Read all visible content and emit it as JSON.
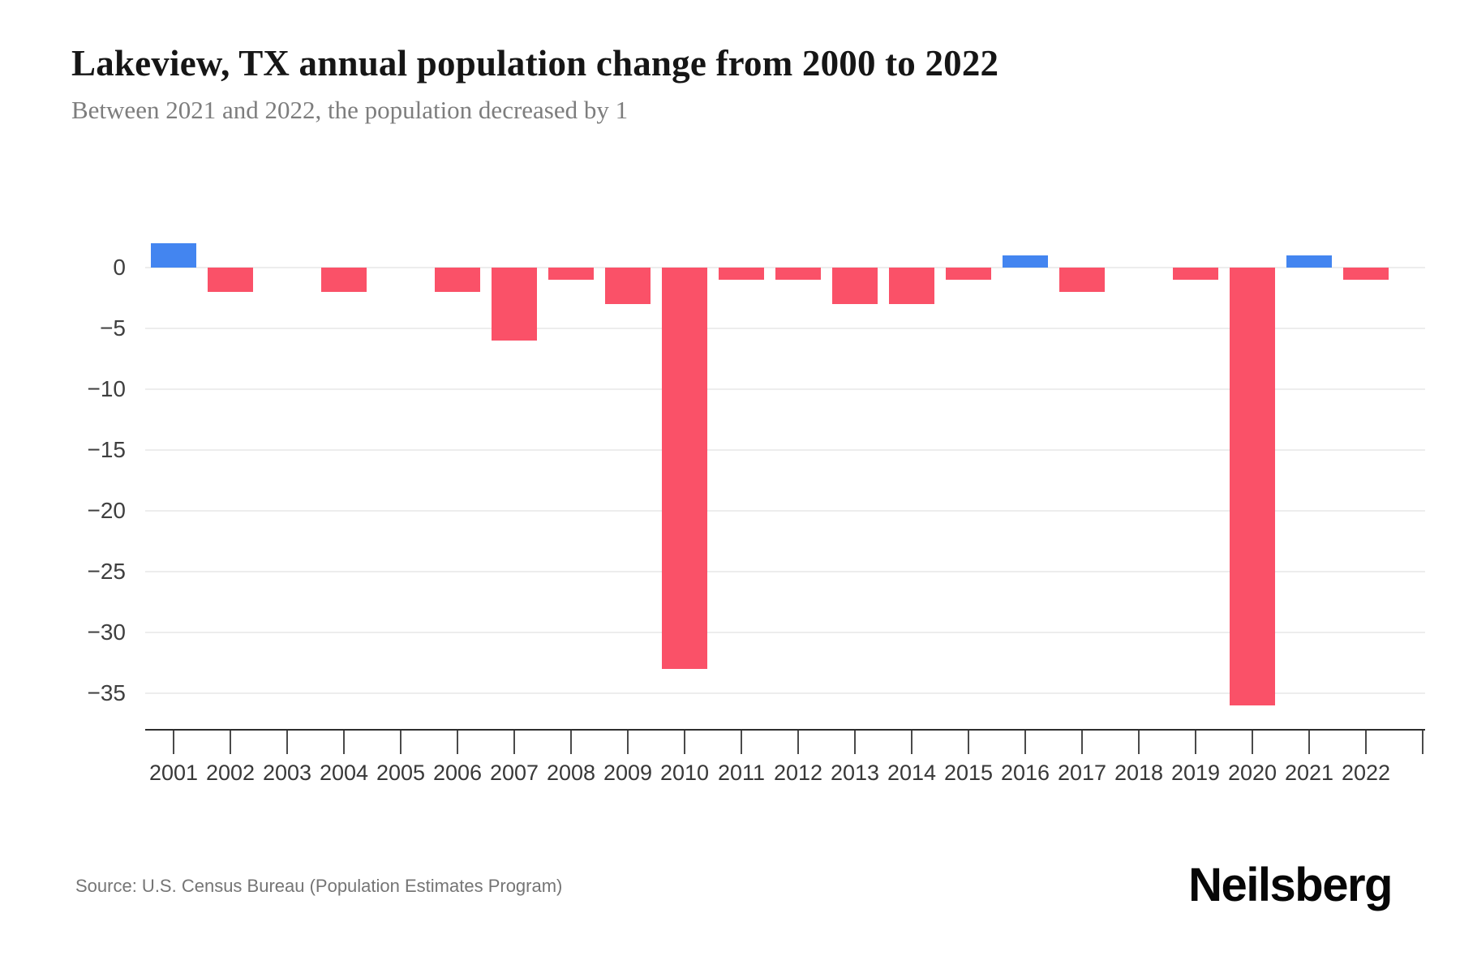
{
  "header": {
    "title": "Lakeview, TX annual population change from 2000 to 2022",
    "subtitle": "Between 2021 and 2022, the population decreased by 1"
  },
  "footer": {
    "source": "Source: U.S. Census Bureau (Population Estimates Program)",
    "brand": "Neilsberg"
  },
  "chart_data": {
    "type": "bar",
    "title": "Lakeview, TX annual population change from 2000 to 2022",
    "subtitle": "Between 2021 and 2022, the population decreased by 1",
    "xlabel": "",
    "ylabel": "",
    "categories": [
      "2001",
      "2002",
      "2003",
      "2004",
      "2005",
      "2006",
      "2007",
      "2008",
      "2009",
      "2010",
      "2011",
      "2012",
      "2013",
      "2014",
      "2015",
      "2016",
      "2017",
      "2018",
      "2019",
      "2020",
      "2021",
      "2022"
    ],
    "values": [
      2,
      -2,
      0,
      -2,
      0,
      -2,
      -6,
      -1,
      -3,
      -33,
      -1,
      -1,
      -3,
      -3,
      -1,
      1,
      -2,
      0,
      -1,
      -36,
      1,
      -1
    ],
    "y_tick_labels": [
      "0",
      "−5",
      "−10",
      "−15",
      "−20",
      "−25",
      "−30",
      "−35"
    ],
    "y_tick_values": [
      0,
      -5,
      -10,
      -15,
      -20,
      -25,
      -30,
      -35
    ],
    "ylim": [
      -38,
      2.3
    ],
    "grid": true,
    "legend_position": "none",
    "colors": {
      "positive_bar": "#4385f0",
      "negative_bar": "#fa5168",
      "gridline": "#ededed",
      "axis_line": "#2e2e2e"
    }
  }
}
